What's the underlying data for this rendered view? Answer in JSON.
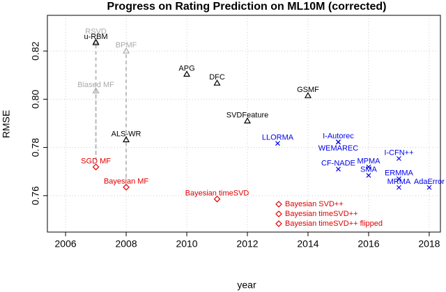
{
  "chart_data": {
    "type": "scatter",
    "title": "Progress on Rating Prediction on ML10M  (corrected)",
    "x_label": "year",
    "y_label": "RMSE",
    "xlim": [
      2005.4,
      2018.37
    ],
    "ylim": [
      0.7449,
      0.8348
    ],
    "xticks": [
      2006,
      2008,
      2010,
      2012,
      2014,
      2016,
      2018
    ],
    "yticks": [
      0.76,
      0.78,
      {
        "value": 0.8,
        "label": "0.80"
      },
      0.82
    ],
    "grid": true,
    "series": [
      {
        "marker": "triangle",
        "color": "#aaaaaa",
        "points": [
          {
            "x": 2007,
            "y": 0.824,
            "label": "RSVD"
          },
          {
            "x": 2008,
            "y": 0.82,
            "label": "BPMF"
          },
          {
            "x": 2007,
            "y": 0.8035,
            "label": "Biased MF"
          }
        ]
      },
      {
        "marker": "triangle",
        "color": "#000000",
        "points": [
          {
            "x": 2007,
            "y": 0.8235,
            "label": "u-RBM"
          },
          {
            "x": 2008,
            "y": 0.7832,
            "label": "ALS-WR"
          },
          {
            "x": 2010,
            "y": 0.8104,
            "label": "APG"
          },
          {
            "x": 2011,
            "y": 0.8067,
            "label": "DFC"
          },
          {
            "x": 2012,
            "y": 0.791,
            "label": "SVDFeature"
          },
          {
            "x": 2014,
            "y": 0.8015,
            "label": "GSMF"
          }
        ]
      },
      {
        "marker": "diamond",
        "color": "#e00000",
        "points": [
          {
            "x": 2007,
            "y": 0.7719,
            "label": "SGD MF"
          },
          {
            "x": 2008,
            "y": 0.7635,
            "label": "Bayesian MF"
          },
          {
            "x": 2011,
            "y": 0.7586,
            "label": "Bayesian timeSVD"
          }
        ]
      },
      {
        "marker": "cross",
        "color": "#0000ee",
        "points": [
          {
            "x": 2013,
            "y": 0.7817,
            "label": "LLORMA"
          },
          {
            "x": 2015,
            "y": 0.7823,
            "label": "I-Autorec"
          },
          {
            "x": 2015,
            "y": 0.7822,
            "label": "WEMAREC"
          },
          {
            "x": 2015,
            "y": 0.771,
            "label": "CF-NADE"
          },
          {
            "x": 2016,
            "y": 0.7719,
            "label": "MPMA"
          },
          {
            "x": 2016,
            "y": 0.7684,
            "label": "SMA"
          },
          {
            "x": 2017,
            "y": 0.7754,
            "label": "I-CFN++"
          },
          {
            "x": 2017,
            "y": 0.767,
            "label": "ERMMA"
          },
          {
            "x": 2017,
            "y": 0.7634,
            "label": "MRMA"
          },
          {
            "x": 2018,
            "y": 0.7634,
            "label": "AdaError"
          }
        ]
      }
    ],
    "legend": {
      "marker": "diamond",
      "color": "#e00000",
      "entries": [
        "Bayesian SVD++",
        "Bayesian timeSVD++",
        "Bayesian timeSVD++ flipped"
      ]
    }
  }
}
